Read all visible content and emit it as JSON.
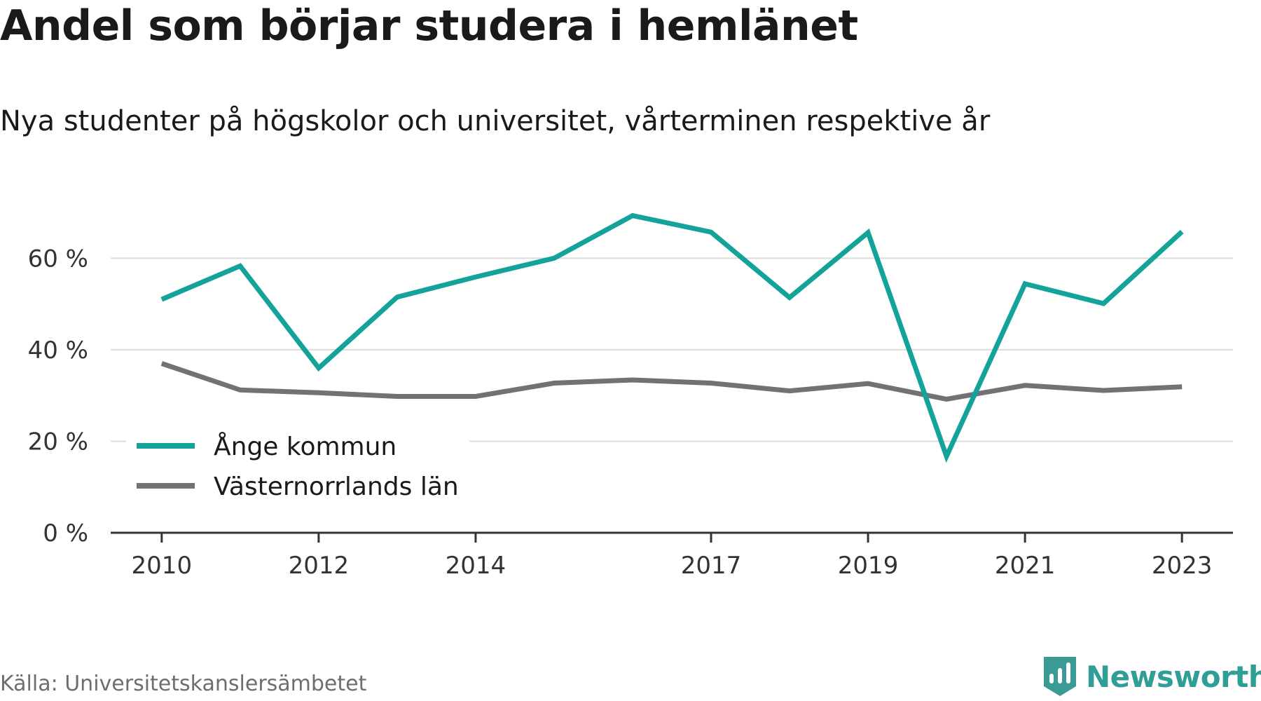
{
  "title": "Andel som börjar studera i hemlänet",
  "subtitle": "Nya studenter på högskolor och universitet, vårterminen respektive år",
  "source": "Källa: Universitetskanslersämbetet",
  "brand": {
    "name": "Newsworthy",
    "icon": "newsworthy-chart-logo-icon",
    "color": "#3a9a94"
  },
  "chart_data": {
    "type": "line",
    "x": [
      2010,
      2011,
      2012,
      2013,
      2014,
      2015,
      2016,
      2017,
      2018,
      2019,
      2020,
      2021,
      2022,
      2023
    ],
    "x_tick_labels": [
      "2010",
      "2012",
      "2014",
      "2017",
      "2019",
      "2021",
      "2023"
    ],
    "x_ticks": [
      2010,
      2012,
      2014,
      2017,
      2019,
      2021,
      2023
    ],
    "y_tick_labels": [
      "0 %",
      "20 %",
      "40 %",
      "60 %"
    ],
    "y_ticks": [
      0,
      20,
      40,
      60
    ],
    "ylim": [
      0,
      72
    ],
    "xlim": [
      2009.35,
      2023.65
    ],
    "grid": true,
    "legend_position": "bottom-left",
    "series": [
      {
        "name": "Ånge kommun",
        "color": "#14a39a",
        "values": [
          51,
          58.3,
          36,
          51.5,
          55.9,
          60,
          69.3,
          65.7,
          51.4,
          65.6,
          16.7,
          54.4,
          50.1,
          65.8
        ]
      },
      {
        "name": "Västernorrlands län",
        "color": "#727176",
        "values": [
          37,
          31.2,
          30.6,
          29.8,
          29.8,
          32.7,
          33.4,
          32.7,
          31,
          32.6,
          29.2,
          32.2,
          31.1,
          31.9
        ]
      }
    ]
  }
}
